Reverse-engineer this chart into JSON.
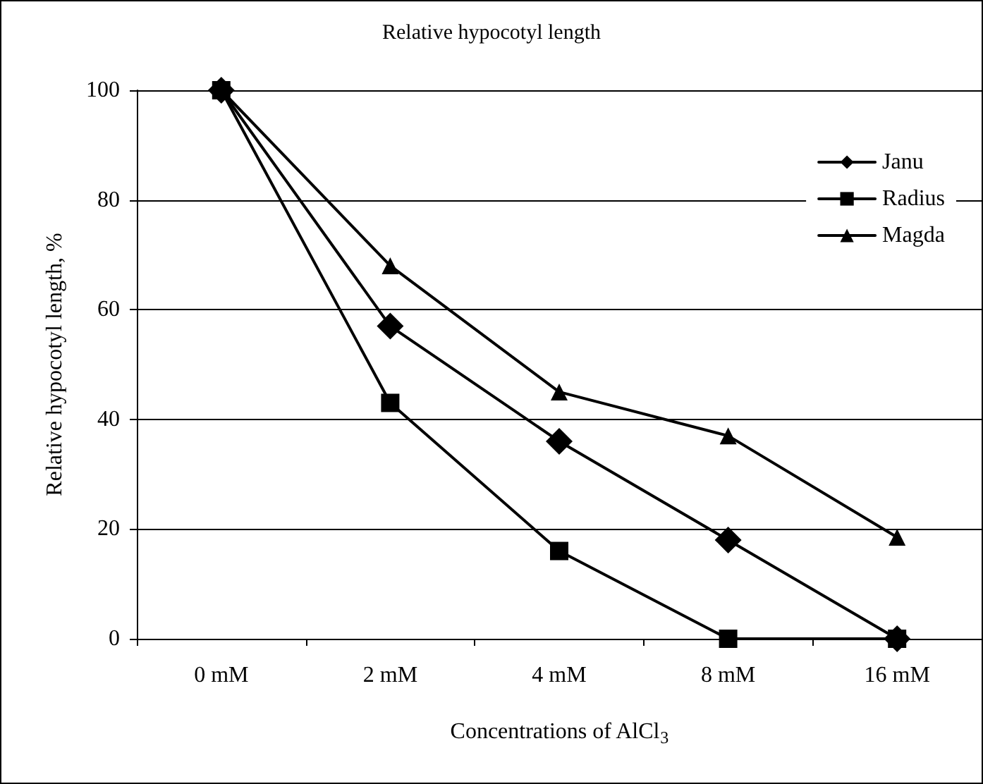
{
  "chart_data": {
    "type": "line",
    "title": "Relative hypocotyl length",
    "xlabel": "Concentrations of AlCl$_{3}$",
    "ylabel": "Relative hypocotyl length, %",
    "categories": [
      "0 mM",
      "2 mM",
      "4 mM",
      "8 mM",
      "16 mM"
    ],
    "series": [
      {
        "name": "Janu",
        "color": "#000000",
        "marker": "diamond",
        "values": [
          100,
          57,
          36,
          18,
          0
        ]
      },
      {
        "name": "Radius",
        "color": "#000000",
        "marker": "square",
        "values": [
          100,
          43,
          16,
          0,
          0
        ]
      },
      {
        "name": "Magda",
        "color": "#000000",
        "marker": "triangle",
        "values": [
          100,
          68,
          45,
          37,
          18.5
        ]
      }
    ],
    "ylim": [
      0,
      100
    ],
    "yticks": [
      0,
      20,
      40,
      60,
      80,
      100
    ],
    "grid": "y",
    "legend": "top right",
    "line_style": "solid"
  }
}
